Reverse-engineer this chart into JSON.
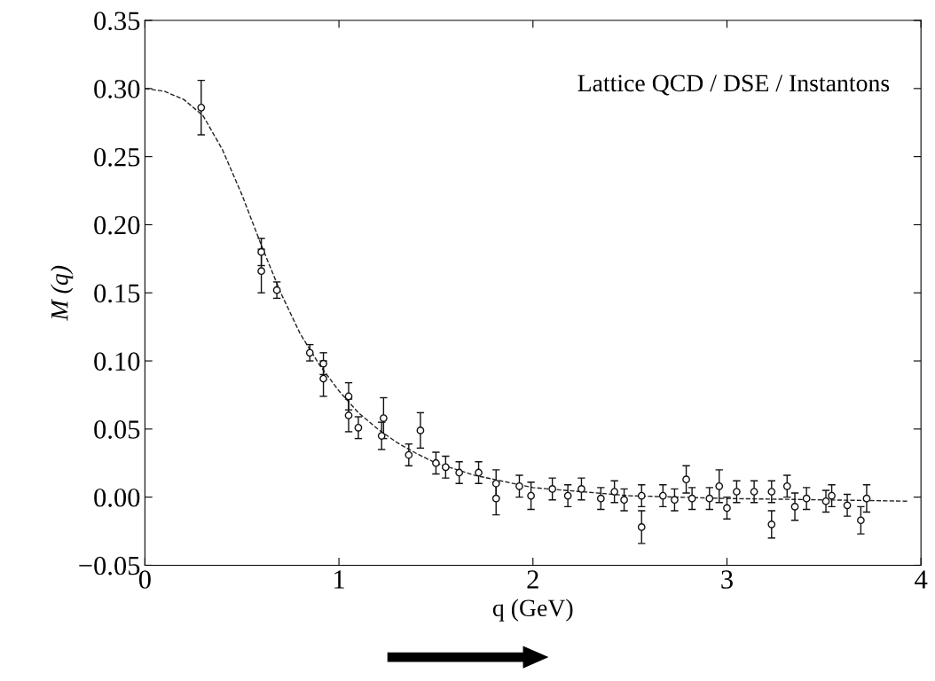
{
  "chart_data": {
    "type": "scatter",
    "xlabel": "q (GeV)",
    "ylabel": "M (q)",
    "annotations": [
      "Lattice QCD / DSE / Instantons"
    ],
    "xlim": [
      0,
      4
    ],
    "xticks": [
      0,
      1,
      2,
      3,
      4
    ],
    "ylim": [
      -0.05,
      0.35
    ],
    "yticks": [
      {
        "value": -0.05,
        "label": "−0.05"
      },
      {
        "value": 0,
        "label": "0.00"
      },
      {
        "value": 0.05,
        "label": "0.05"
      },
      {
        "value": 0.1,
        "label": "0.10"
      },
      {
        "value": 0.15,
        "label": "0.15"
      },
      {
        "value": 0.2,
        "label": "0.20"
      },
      {
        "value": 0.25,
        "label": "0.25"
      },
      {
        "value": 0.3,
        "label": "0.30"
      },
      {
        "value": 0.35,
        "label": "0.35"
      }
    ],
    "grid": false,
    "series": [
      {
        "type": "line",
        "color": "#222222",
        "line_style": "dashed",
        "x": [
          0,
          0.1,
          0.2,
          0.3,
          0.4,
          0.5,
          0.6,
          0.7,
          0.8,
          0.9,
          1.0,
          1.1,
          1.2,
          1.3,
          1.4,
          1.5,
          1.7,
          2.0,
          2.5,
          3.0,
          3.5,
          3.93
        ],
        "values": [
          0.3,
          0.298,
          0.292,
          0.28,
          0.255,
          0.222,
          0.185,
          0.15,
          0.12,
          0.097,
          0.078,
          0.062,
          0.05,
          0.04,
          0.032,
          0.025,
          0.016,
          0.007,
          0.001,
          -0.001,
          -0.002,
          -0.003
        ]
      },
      {
        "color": "#111111",
        "marker": "circle",
        "x": [
          0.29,
          0.6,
          0.6,
          0.68,
          0.85,
          0.92,
          0.92,
          1.05,
          1.05,
          1.1,
          1.22,
          1.23,
          1.36,
          1.42,
          1.5,
          1.55,
          1.62,
          1.72,
          1.81,
          1.81,
          1.93,
          1.99,
          2.1,
          2.18,
          2.25,
          2.35,
          2.42,
          2.47,
          2.56,
          2.56,
          2.67,
          2.73,
          2.79,
          2.82,
          2.91,
          2.96,
          3.0,
          3.05,
          3.14,
          3.23,
          3.23,
          3.31,
          3.35,
          3.41,
          3.51,
          3.54,
          3.62,
          3.69,
          3.72
        ],
        "values": [
          0.286,
          0.18,
          0.166,
          0.152,
          0.106,
          0.098,
          0.087,
          0.074,
          0.06,
          0.051,
          0.045,
          0.058,
          0.031,
          0.049,
          0.025,
          0.022,
          0.018,
          0.018,
          0.01,
          -0.001,
          0.008,
          0.001,
          0.006,
          0.001,
          0.006,
          -0.001,
          0.004,
          -0.002,
          -0.022,
          0.001,
          0.001,
          -0.002,
          0.013,
          -0.001,
          -0.001,
          0.008,
          -0.008,
          0.004,
          0.004,
          -0.02,
          0.004,
          0.008,
          -0.007,
          -0.001,
          -0.003,
          0.001,
          -0.006,
          -0.017,
          -0.001
        ],
        "errors": [
          0.02,
          0.01,
          0.016,
          0.006,
          0.006,
          0.008,
          0.013,
          0.01,
          0.012,
          0.008,
          0.01,
          0.015,
          0.008,
          0.013,
          0.008,
          0.008,
          0.008,
          0.008,
          0.01,
          0.012,
          0.008,
          0.01,
          0.008,
          0.008,
          0.008,
          0.008,
          0.008,
          0.008,
          0.012,
          0.008,
          0.008,
          0.008,
          0.01,
          0.008,
          0.008,
          0.012,
          0.008,
          0.008,
          0.008,
          0.01,
          0.008,
          0.008,
          0.01,
          0.008,
          0.008,
          0.008,
          0.008,
          0.01,
          0.01
        ]
      }
    ]
  }
}
